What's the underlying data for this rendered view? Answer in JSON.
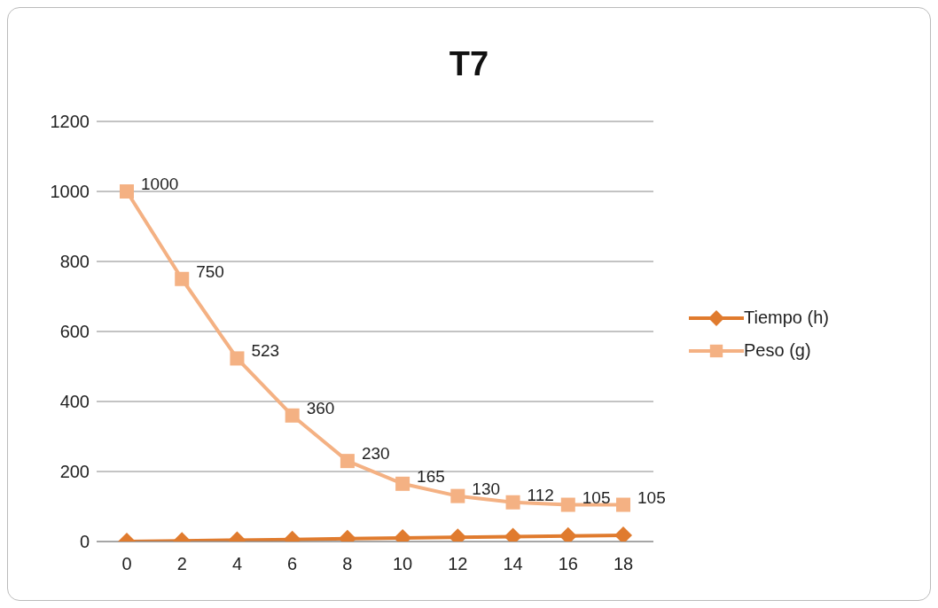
{
  "chart_data": {
    "type": "line",
    "title": "T7",
    "categories": [
      "0",
      "2",
      "4",
      "6",
      "8",
      "10",
      "12",
      "14",
      "16",
      "18"
    ],
    "series": [
      {
        "name": "Tiempo (h)",
        "color": "#e07b2e",
        "marker": "diamond",
        "values": [
          0,
          2,
          4,
          6,
          8,
          10,
          12,
          14,
          16,
          18
        ]
      },
      {
        "name": "Peso (g)",
        "color": "#f4b183",
        "marker": "square",
        "values": [
          1000,
          750,
          523,
          360,
          230,
          165,
          130,
          112,
          105,
          105
        ],
        "value_labels": [
          "1000",
          "750",
          "523",
          "360",
          "230",
          "165",
          "130",
          "112",
          "105",
          "105"
        ]
      }
    ],
    "ylim": [
      0,
      1200
    ],
    "yticks": [
      0,
      200,
      400,
      600,
      800,
      1000,
      1200
    ],
    "grid": "y",
    "legend": "right",
    "line_style": "solid"
  }
}
